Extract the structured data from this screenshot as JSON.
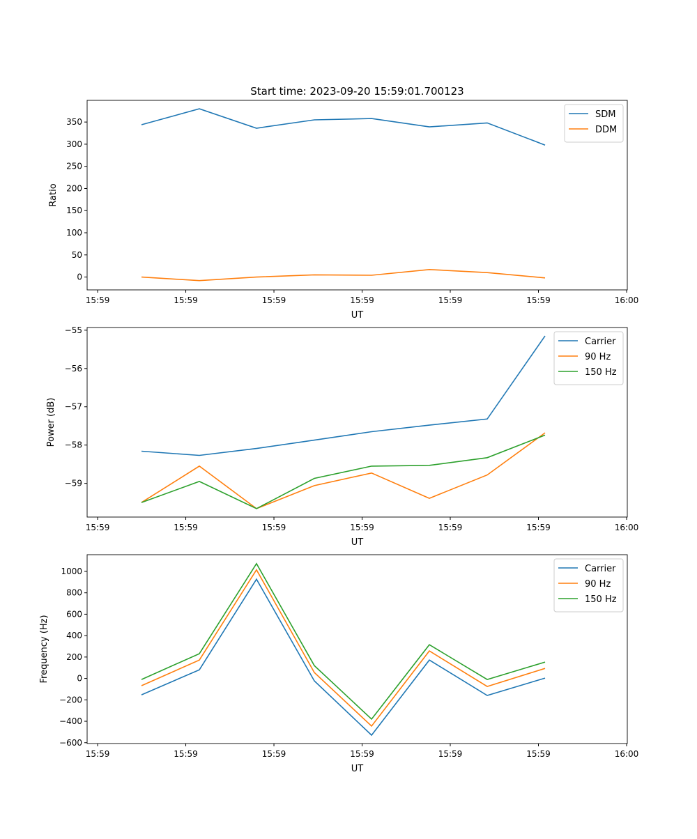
{
  "chart_data": [
    {
      "type": "line",
      "title": "Start time: 2023-09-20 15:59:01.700123",
      "xlabel": "UT",
      "ylabel": "Ratio",
      "x_seconds": [
        4.98,
        11.54,
        18.02,
        24.58,
        31.07,
        37.63,
        44.19,
        50.75
      ],
      "xlim": [
        -1.19,
        60.08
      ],
      "xticks": [
        0,
        10,
        20,
        30,
        40,
        50,
        60
      ],
      "xticklabels": [
        "15:59",
        "15:59",
        "15:59",
        "15:59",
        "15:59",
        "15:59",
        "16:00"
      ],
      "ylim": [
        -29,
        399
      ],
      "yticks": [
        0,
        50,
        100,
        150,
        200,
        250,
        300,
        350
      ],
      "yticklabels": [
        "0",
        "50",
        "100",
        "150",
        "200",
        "250",
        "300",
        "350"
      ],
      "legend": "top-right",
      "series": [
        {
          "name": "SDM",
          "color": "#1f77b4",
          "values": [
            344,
            380,
            336,
            355,
            358,
            339,
            348,
            298
          ]
        },
        {
          "name": "DDM",
          "color": "#ff7f0e",
          "values": [
            0,
            -8,
            0,
            5,
            4,
            17,
            10,
            -2
          ]
        }
      ]
    },
    {
      "type": "line",
      "xlabel": "UT",
      "ylabel": "Power (dB)",
      "x_seconds": [
        4.98,
        11.54,
        18.02,
        24.58,
        31.07,
        37.63,
        44.19,
        50.75
      ],
      "xlim": [
        -1.19,
        60.08
      ],
      "xticks": [
        0,
        10,
        20,
        30,
        40,
        50,
        60
      ],
      "xticklabels": [
        "15:59",
        "15:59",
        "15:59",
        "15:59",
        "15:59",
        "15:59",
        "16:00"
      ],
      "ylim": [
        -59.88,
        -54.93
      ],
      "yticks": [
        -59,
        -58,
        -57,
        -56,
        -55
      ],
      "yticklabels": [
        "−59",
        "−58",
        "−57",
        "−56",
        "−55"
      ],
      "legend": "top-right",
      "series": [
        {
          "name": "Carrier",
          "color": "#1f77b4",
          "values": [
            -58.16,
            -58.27,
            -58.09,
            -57.87,
            -57.65,
            -57.48,
            -57.32,
            -55.15
          ]
        },
        {
          "name": "90 Hz",
          "color": "#ff7f0e",
          "values": [
            -59.5,
            -58.55,
            -59.66,
            -59.06,
            -58.73,
            -59.39,
            -58.78,
            -57.68
          ]
        },
        {
          "name": "150 Hz",
          "color": "#2ca02c",
          "values": [
            -59.5,
            -58.95,
            -59.66,
            -58.87,
            -58.55,
            -58.53,
            -58.33,
            -57.74
          ]
        }
      ]
    },
    {
      "type": "line",
      "xlabel": "UT",
      "ylabel": "Frequency (Hz)",
      "x_seconds": [
        4.98,
        11.54,
        18.02,
        24.58,
        31.07,
        37.63,
        44.19,
        50.75
      ],
      "xlim": [
        -1.19,
        60.08
      ],
      "xticks": [
        0,
        10,
        20,
        30,
        40,
        50,
        60
      ],
      "xticklabels": [
        "15:59",
        "15:59",
        "15:59",
        "15:59",
        "15:59",
        "15:59",
        "16:00"
      ],
      "ylim": [
        -608,
        1156
      ],
      "yticks": [
        -600,
        -400,
        -200,
        0,
        200,
        400,
        600,
        800,
        1000
      ],
      "yticklabels": [
        "−600",
        "−400",
        "−200",
        "0",
        "200",
        "400",
        "600",
        "800",
        "1000"
      ],
      "legend": "top-right",
      "series": [
        {
          "name": "Carrier",
          "color": "#1f77b4",
          "values": [
            -153,
            81,
            927,
            -23,
            -530,
            172,
            -159,
            3
          ]
        },
        {
          "name": "90 Hz",
          "color": "#ff7f0e",
          "values": [
            -68,
            172,
            1015,
            55,
            -445,
            257,
            -75,
            94
          ]
        },
        {
          "name": "150 Hz",
          "color": "#2ca02c",
          "values": [
            -10,
            231,
            1073,
            120,
            -380,
            315,
            -10,
            153
          ]
        }
      ]
    }
  ]
}
